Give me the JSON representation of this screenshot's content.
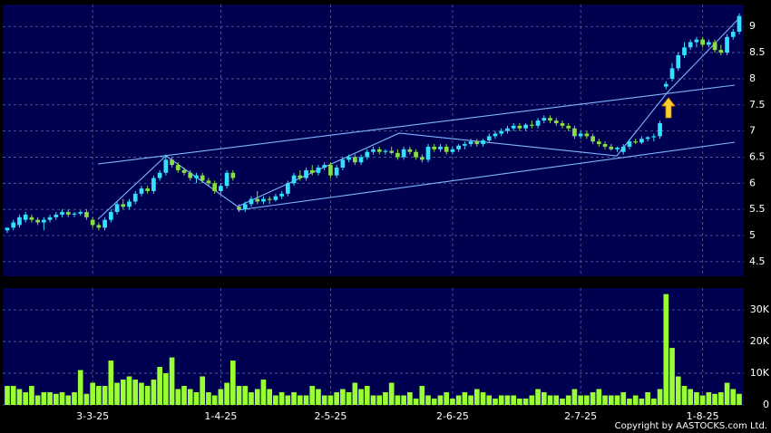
{
  "chart_data": {
    "type": "candlestick",
    "categories": [
      null,
      null,
      null,
      null,
      null,
      null,
      null,
      null,
      null,
      null,
      null,
      null,
      null,
      null,
      "3-3-25",
      null,
      null,
      null,
      null,
      null,
      null,
      null,
      null,
      null,
      null,
      null,
      null,
      null,
      null,
      null,
      null,
      null,
      null,
      null,
      null,
      "1-4-25",
      null,
      null,
      null,
      null,
      null,
      null,
      null,
      null,
      null,
      null,
      null,
      null,
      null,
      null,
      null,
      null,
      null,
      "2-5-25",
      null,
      null,
      null,
      null,
      null,
      null,
      null,
      null,
      null,
      null,
      null,
      null,
      null,
      null,
      null,
      null,
      null,
      null,
      null,
      "2-6-25",
      null,
      null,
      null,
      null,
      null,
      null,
      null,
      null,
      null,
      null,
      null,
      null,
      null,
      null,
      null,
      null,
      null,
      null,
      null,
      null,
      "2-7-25",
      null,
      null,
      null,
      null,
      null,
      null,
      null,
      null,
      null,
      null,
      null,
      null,
      null,
      null,
      null,
      null,
      null,
      null,
      null,
      "1-8-25",
      null,
      null,
      null,
      null,
      null,
      null
    ],
    "candles": [
      [
        5.1,
        5.15,
        5.05,
        5.15
      ],
      [
        5.15,
        5.3,
        5.1,
        5.25
      ],
      [
        5.2,
        5.4,
        5.15,
        5.35
      ],
      [
        5.3,
        5.45,
        5.25,
        5.4
      ],
      [
        5.35,
        5.4,
        5.25,
        5.3
      ],
      [
        5.3,
        5.35,
        5.2,
        5.25
      ],
      [
        5.25,
        5.35,
        5.1,
        5.3
      ],
      [
        5.3,
        5.4,
        5.25,
        5.35
      ],
      [
        5.35,
        5.45,
        5.3,
        5.4
      ],
      [
        5.4,
        5.5,
        5.35,
        5.45
      ],
      [
        5.45,
        5.5,
        5.35,
        5.4
      ],
      [
        5.4,
        5.45,
        5.35,
        5.42
      ],
      [
        5.42,
        5.48,
        5.38,
        5.45
      ],
      [
        5.45,
        5.5,
        5.3,
        5.35
      ],
      [
        5.3,
        5.35,
        5.15,
        5.2
      ],
      [
        5.2,
        5.25,
        5.1,
        5.15
      ],
      [
        5.15,
        5.35,
        5.1,
        5.3
      ],
      [
        5.3,
        5.5,
        5.25,
        5.45
      ],
      [
        5.45,
        5.65,
        5.4,
        5.6
      ],
      [
        5.6,
        5.7,
        5.5,
        5.55
      ],
      [
        5.55,
        5.7,
        5.5,
        5.65
      ],
      [
        5.65,
        5.85,
        5.6,
        5.8
      ],
      [
        5.8,
        5.95,
        5.75,
        5.9
      ],
      [
        5.9,
        5.95,
        5.8,
        5.85
      ],
      [
        5.85,
        6.15,
        5.8,
        6.1
      ],
      [
        6.1,
        6.25,
        6.05,
        6.2
      ],
      [
        6.2,
        6.55,
        6.15,
        6.45
      ],
      [
        6.45,
        6.5,
        6.3,
        6.35
      ],
      [
        6.35,
        6.4,
        6.2,
        6.25
      ],
      [
        6.25,
        6.3,
        6.15,
        6.2
      ],
      [
        6.2,
        6.25,
        6.05,
        6.1
      ],
      [
        6.1,
        6.2,
        6.0,
        6.15
      ],
      [
        6.15,
        6.2,
        6.0,
        6.05
      ],
      [
        6.05,
        6.1,
        5.95,
        6.0
      ],
      [
        6.0,
        6.05,
        5.8,
        5.85
      ],
      [
        5.85,
        6.0,
        5.8,
        5.95
      ],
      [
        5.95,
        6.25,
        5.9,
        6.2
      ],
      [
        6.2,
        6.25,
        6.05,
        6.1
      ],
      [
        5.55,
        5.6,
        5.45,
        5.5
      ],
      [
        5.5,
        5.65,
        5.45,
        5.6
      ],
      [
        5.6,
        5.75,
        5.55,
        5.7
      ],
      [
        5.7,
        5.85,
        5.6,
        5.65
      ],
      [
        5.65,
        5.75,
        5.6,
        5.7
      ],
      [
        5.7,
        5.75,
        5.6,
        5.68
      ],
      [
        5.68,
        5.8,
        5.65,
        5.75
      ],
      [
        5.75,
        5.85,
        5.7,
        5.8
      ],
      [
        5.8,
        6.05,
        5.75,
        6.0
      ],
      [
        6.0,
        6.2,
        5.95,
        6.15
      ],
      [
        6.15,
        6.25,
        6.05,
        6.1
      ],
      [
        6.1,
        6.3,
        6.05,
        6.25
      ],
      [
        6.25,
        6.35,
        6.15,
        6.2
      ],
      [
        6.2,
        6.35,
        6.15,
        6.3
      ],
      [
        6.3,
        6.4,
        6.25,
        6.35
      ],
      [
        6.35,
        6.4,
        6.1,
        6.15
      ],
      [
        6.15,
        6.35,
        6.1,
        6.3
      ],
      [
        6.3,
        6.5,
        6.25,
        6.45
      ],
      [
        6.45,
        6.55,
        6.4,
        6.5
      ],
      [
        6.5,
        6.55,
        6.35,
        6.4
      ],
      [
        6.4,
        6.55,
        6.35,
        6.5
      ],
      [
        6.5,
        6.65,
        6.45,
        6.6
      ],
      [
        6.6,
        6.7,
        6.55,
        6.65
      ],
      [
        6.65,
        6.7,
        6.55,
        6.6
      ],
      [
        6.6,
        6.65,
        6.55,
        6.62
      ],
      [
        6.62,
        6.7,
        6.55,
        6.58
      ],
      [
        6.58,
        6.65,
        6.45,
        6.5
      ],
      [
        6.5,
        6.7,
        6.45,
        6.65
      ],
      [
        6.65,
        6.7,
        6.55,
        6.6
      ],
      [
        6.6,
        6.65,
        6.45,
        6.5
      ],
      [
        6.5,
        6.55,
        6.4,
        6.45
      ],
      [
        6.45,
        6.75,
        6.4,
        6.7
      ],
      [
        6.7,
        6.75,
        6.6,
        6.65
      ],
      [
        6.65,
        6.75,
        6.6,
        6.7
      ],
      [
        6.7,
        6.75,
        6.55,
        6.6
      ],
      [
        6.6,
        6.7,
        6.55,
        6.65
      ],
      [
        6.65,
        6.75,
        6.6,
        6.72
      ],
      [
        6.72,
        6.8,
        6.65,
        6.75
      ],
      [
        6.75,
        6.85,
        6.7,
        6.8
      ],
      [
        6.8,
        6.85,
        6.7,
        6.75
      ],
      [
        6.75,
        6.85,
        6.7,
        6.82
      ],
      [
        6.82,
        6.95,
        6.78,
        6.9
      ],
      [
        6.9,
        7.0,
        6.85,
        6.95
      ],
      [
        6.95,
        7.05,
        6.9,
        7.0
      ],
      [
        7.0,
        7.1,
        6.95,
        7.05
      ],
      [
        7.05,
        7.15,
        7.0,
        7.1
      ],
      [
        7.1,
        7.15,
        7.0,
        7.05
      ],
      [
        7.05,
        7.15,
        7.0,
        7.12
      ],
      [
        7.12,
        7.2,
        7.05,
        7.1
      ],
      [
        7.1,
        7.25,
        7.05,
        7.2
      ],
      [
        7.2,
        7.3,
        7.15,
        7.25
      ],
      [
        7.25,
        7.3,
        7.15,
        7.2
      ],
      [
        7.2,
        7.25,
        7.1,
        7.15
      ],
      [
        7.15,
        7.2,
        7.05,
        7.1
      ],
      [
        7.1,
        7.15,
        7.0,
        7.05
      ],
      [
        7.05,
        7.1,
        6.85,
        6.9
      ],
      [
        6.9,
        7.0,
        6.85,
        6.95
      ],
      [
        6.95,
        7.0,
        6.85,
        6.9
      ],
      [
        6.9,
        6.95,
        6.75,
        6.8
      ],
      [
        6.8,
        6.85,
        6.7,
        6.75
      ],
      [
        6.75,
        6.8,
        6.65,
        6.7
      ],
      [
        6.7,
        6.75,
        6.62,
        6.65
      ],
      [
        6.65,
        6.7,
        6.6,
        6.68
      ],
      [
        6.6,
        6.75,
        6.55,
        6.7
      ],
      [
        6.7,
        6.85,
        6.65,
        6.8
      ],
      [
        6.8,
        6.85,
        6.75,
        6.78
      ],
      [
        6.78,
        6.9,
        6.75,
        6.85
      ],
      [
        6.85,
        6.9,
        6.8,
        6.88
      ],
      [
        6.88,
        6.95,
        6.8,
        6.9
      ],
      [
        6.9,
        7.2,
        6.85,
        7.15
      ],
      [
        7.85,
        7.95,
        7.8,
        7.9
      ],
      [
        8.0,
        8.3,
        7.95,
        8.2
      ],
      [
        8.2,
        8.5,
        8.15,
        8.45
      ],
      [
        8.45,
        8.7,
        8.4,
        8.6
      ],
      [
        8.6,
        8.75,
        8.55,
        8.7
      ],
      [
        8.7,
        8.8,
        8.6,
        8.75
      ],
      [
        8.75,
        8.8,
        8.6,
        8.65
      ],
      [
        8.65,
        8.75,
        8.6,
        8.7
      ],
      [
        8.7,
        8.75,
        8.5,
        8.55
      ],
      [
        8.55,
        8.65,
        8.45,
        8.5
      ],
      [
        8.5,
        8.85,
        8.45,
        8.8
      ],
      [
        8.8,
        8.95,
        8.75,
        8.9
      ],
      [
        8.9,
        9.25,
        8.85,
        9.2
      ]
    ],
    "up_color": "#33e0ff",
    "down_color": "#88dd44",
    "ylim": [
      4.22,
      9.42
    ],
    "yticks": [
      4.5,
      5,
      5.5,
      6,
      6.5,
      7,
      7.5,
      8,
      8.5,
      9
    ],
    "volume": [
      6000,
      6000,
      5000,
      4000,
      6000,
      3000,
      4000,
      4000,
      3500,
      4000,
      3000,
      4000,
      11000,
      3500,
      7000,
      6000,
      6000,
      14000,
      7000,
      8000,
      9000,
      8000,
      7000,
      6000,
      8000,
      12000,
      10000,
      15000,
      5000,
      6000,
      5000,
      4000,
      9000,
      4000,
      3000,
      5000,
      7000,
      14000,
      6000,
      6000,
      4000,
      5000,
      8000,
      5000,
      3000,
      4000,
      3000,
      4000,
      3000,
      3000,
      6000,
      5000,
      3000,
      3000,
      4000,
      5000,
      4000,
      7000,
      5000,
      6000,
      3000,
      3000,
      4000,
      7000,
      3000,
      3000,
      4000,
      2000,
      6000,
      3000,
      2000,
      3000,
      4000,
      2000,
      3000,
      4000,
      3000,
      5000,
      4000,
      3000,
      2000,
      3000,
      3000,
      3000,
      2000,
      2000,
      3000,
      5000,
      4000,
      3000,
      3000,
      2000,
      3000,
      5000,
      3000,
      3000,
      4000,
      5000,
      3000,
      3000,
      3000,
      4000,
      2000,
      3000,
      2000,
      4000,
      2000,
      5000,
      35000,
      18000,
      9000,
      6000,
      5000,
      4000,
      3000,
      4000,
      3500,
      4000,
      7000,
      5000,
      3500
    ],
    "volume_color": "#99ff33",
    "volume_ylim": [
      0,
      36900
    ],
    "volume_yticks": [
      0,
      {
        "value": 10000,
        "label": "10K"
      },
      {
        "value": 20000,
        "label": "20K"
      },
      {
        "value": 30000,
        "label": "30K"
      }
    ],
    "grid": true,
    "copyright": "Copyright by AASTOCKS.com Ltd."
  }
}
